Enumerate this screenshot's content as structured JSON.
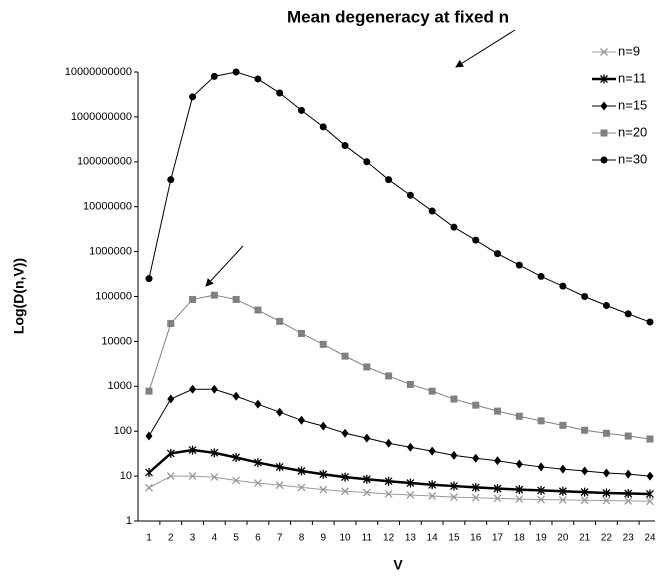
{
  "chart_data": {
    "type": "line",
    "title": "Mean degeneracy at fixed n",
    "y_label": "Log(D(n,V))",
    "x_label": "V",
    "categories": [
      "1",
      "2",
      "3",
      "4",
      "5",
      "6",
      "7",
      "8",
      "9",
      "10",
      "11",
      "12",
      "13",
      "14",
      "15",
      "16",
      "17",
      "18",
      "19",
      "20",
      "21",
      "22",
      "23",
      "24"
    ],
    "y_scale": "log",
    "ylim": [
      1,
      10000000000
    ],
    "yticks": [
      1,
      10,
      100,
      1000,
      10000,
      100000,
      1000000,
      10000000,
      100000000,
      1000000000,
      10000000000
    ],
    "legend": "upper right",
    "series": [
      {
        "name": "n=9",
        "color": "#999999",
        "marker": "x",
        "values": [
          5.5,
          10,
          10,
          9.5,
          8,
          7,
          6.3,
          5.6,
          5,
          4.6,
          4.3,
          4,
          3.8,
          3.6,
          3.4,
          3.3,
          3.2,
          3.1,
          3,
          2.95,
          2.9,
          2.85,
          2.8,
          2.75
        ]
      },
      {
        "name": "n=11",
        "color": "#000000",
        "marker": "star",
        "values": [
          12,
          32,
          38,
          33,
          26,
          20,
          16,
          13,
          11,
          9.5,
          8.5,
          7.7,
          7,
          6.4,
          6,
          5.6,
          5.3,
          5,
          4.8,
          4.6,
          4.4,
          4.2,
          4.1,
          4
        ]
      },
      {
        "name": "n=15",
        "color": "#000000",
        "marker": "diamond",
        "values": [
          78,
          520,
          860,
          860,
          600,
          400,
          265,
          175,
          130,
          90,
          70,
          54,
          44,
          36,
          29,
          25,
          22,
          18.5,
          16,
          14.3,
          13,
          11.7,
          11.1,
          10
        ]
      },
      {
        "name": "n=20",
        "color": "#808080",
        "marker": "square",
        "values": [
          780,
          25000,
          86000,
          107000,
          86000,
          50000,
          28000,
          15000,
          8600,
          4700,
          2700,
          1700,
          1100,
          780,
          520,
          380,
          280,
          215,
          170,
          135,
          105,
          90,
          78,
          67
        ]
      },
      {
        "name": "n=30",
        "color": "#000000",
        "marker": "circle",
        "values": [
          250000,
          40000000,
          2800000000,
          8000000000,
          10000000000,
          7000000000,
          3400000000,
          1400000000,
          600000000,
          230000000,
          100000000,
          40000000,
          18000000,
          8000000,
          3500000,
          1800000,
          900000,
          500000,
          280000,
          170000,
          100000,
          63000,
          41000,
          27000
        ]
      }
    ]
  }
}
